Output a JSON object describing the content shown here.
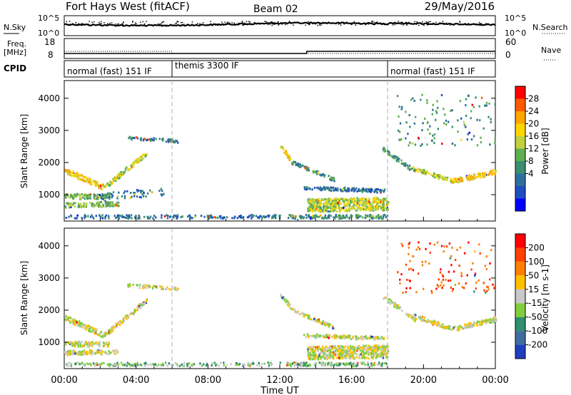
{
  "header": {
    "title": "Fort Hays West (fitACF)",
    "beam": "Beam 02",
    "date": "29/May/2016"
  },
  "noise_panel": {
    "left_label": "N.Sky",
    "right_label": "N.Search",
    "left_ticks": [
      "10^5",
      "10^0"
    ],
    "right_ticks": [
      "10^5",
      "10^0"
    ]
  },
  "freq_panel": {
    "left_label_line1": "Freq.",
    "left_label_line2": "[MHz]",
    "left_ticks": [
      "18",
      "8"
    ],
    "right_ticks": [
      "60",
      "0"
    ],
    "right_label": "Nave"
  },
  "cpid": {
    "label": "CPID",
    "segments": [
      {
        "name": "normal (fast) 151 IF",
        "start_hour": 0,
        "end_hour": 6
      },
      {
        "name": "themis 3300 IF",
        "start_hour": 6,
        "end_hour": 18
      },
      {
        "name": "normal (fast) 151 IF",
        "start_hour": 18,
        "end_hour": 24
      }
    ]
  },
  "chart_data": [
    {
      "type": "heatmap",
      "title": "",
      "ylabel": "Slant Range [km]",
      "xlabel": "Time UT",
      "xlim": [
        0,
        24
      ],
      "ylim": [
        180,
        4550
      ],
      "yticks": [
        "1000",
        "2000",
        "3000",
        "4000"
      ],
      "xticks": [
        "00:00",
        "04:00",
        "08:00",
        "12:00",
        "16:00",
        "20:00",
        "00:00"
      ],
      "colorbar": {
        "label": "Power [dB]",
        "tick_labels": [
          "4",
          "8",
          "12",
          "16",
          "20",
          "24",
          "28"
        ],
        "colors": [
          "#0000ff",
          "#1f4fbf",
          "#2f6f9f",
          "#3b8f6f",
          "#5faf4f",
          "#bfd13f",
          "#ffd700",
          "#ffa500",
          "#ff5a00",
          "#ff0000"
        ]
      },
      "scatter_bands": [
        {
          "start_hour": 0.0,
          "end_hour": 2.2,
          "range_start": 1750,
          "range_end": 1200,
          "width": 170,
          "density": 0.9,
          "level": 6
        },
        {
          "start_hour": 2.2,
          "end_hour": 4.6,
          "range_start": 1200,
          "range_end": 2300,
          "width": 150,
          "density": 0.85,
          "level": 5
        },
        {
          "start_hour": 0.0,
          "end_hour": 2.5,
          "range_start": 930,
          "range_end": 930,
          "width": 160,
          "density": 0.8,
          "level": 4
        },
        {
          "start_hour": 0.0,
          "end_hour": 3.0,
          "range_start": 650,
          "range_end": 700,
          "width": 150,
          "density": 0.75,
          "level": 4
        },
        {
          "start_hour": 3.5,
          "end_hour": 6.3,
          "range_start": 2750,
          "range_end": 2650,
          "width": 100,
          "density": 0.4,
          "level": 2
        },
        {
          "start_hour": 2.0,
          "end_hour": 5.5,
          "range_start": 900,
          "range_end": 1100,
          "width": 250,
          "density": 0.2,
          "level": 2
        },
        {
          "start_hour": 0.0,
          "end_hour": 12.0,
          "range_start": 300,
          "range_end": 300,
          "width": 110,
          "density": 0.3,
          "level": 2
        },
        {
          "start_hour": 12.0,
          "end_hour": 12.6,
          "range_start": 2500,
          "range_end": 2050,
          "width": 140,
          "density": 0.85,
          "level": 6
        },
        {
          "start_hour": 12.6,
          "end_hour": 15.0,
          "range_start": 2000,
          "range_end": 1450,
          "width": 110,
          "density": 0.6,
          "level": 3
        },
        {
          "start_hour": 13.3,
          "end_hour": 17.8,
          "range_start": 1200,
          "range_end": 1100,
          "width": 110,
          "density": 0.65,
          "level": 2
        },
        {
          "start_hour": 13.5,
          "end_hour": 18.0,
          "range_start": 650,
          "range_end": 700,
          "width": 400,
          "density": 0.9,
          "level": 5
        },
        {
          "start_hour": 12.3,
          "end_hour": 18.0,
          "range_start": 300,
          "range_end": 300,
          "width": 120,
          "density": 0.5,
          "level": 3
        },
        {
          "start_hour": 17.7,
          "end_hour": 19.5,
          "range_start": 2400,
          "range_end": 1700,
          "width": 140,
          "density": 0.6,
          "level": 3
        },
        {
          "start_hour": 19.4,
          "end_hour": 21.6,
          "range_start": 1800,
          "range_end": 1400,
          "width": 140,
          "density": 0.7,
          "level": 5
        },
        {
          "start_hour": 21.6,
          "end_hour": 24.0,
          "range_start": 1400,
          "range_end": 1700,
          "width": 150,
          "density": 0.85,
          "level": 6
        },
        {
          "start_hour": 18.5,
          "end_hour": 24.0,
          "range_start": 3300,
          "range_end": 3300,
          "width": 1600,
          "density": 0.04,
          "level": 3
        }
      ]
    },
    {
      "type": "heatmap",
      "title": "",
      "ylabel": "Slant Range [km]",
      "xlabel": "Time UT",
      "xlim": [
        0,
        24
      ],
      "ylim": [
        180,
        4550
      ],
      "yticks": [
        "1000",
        "2000",
        "3000",
        "4000"
      ],
      "xticks": [
        "00:00",
        "04:00",
        "08:00",
        "12:00",
        "16:00",
        "20:00",
        "00:00"
      ],
      "colorbar": {
        "label": "Velocity [m s-1]",
        "tick_labels": [
          "200",
          "100",
          "50",
          "15",
          "-15",
          "-50",
          "-100",
          "-200"
        ],
        "colors": [
          "#1f3fbf",
          "#3f6f9f",
          "#2f8f6f",
          "#7fcf3f",
          "#c8c8c8",
          "#ffc000",
          "#ff8000",
          "#ff4000",
          "#ff0000"
        ]
      },
      "scatter_bands": [
        {
          "start_hour": 0.0,
          "end_hour": 2.2,
          "range_start": 1750,
          "range_end": 1200,
          "width": 170,
          "density": 0.9,
          "level": 4
        },
        {
          "start_hour": 2.2,
          "end_hour": 4.6,
          "range_start": 1200,
          "range_end": 2300,
          "width": 150,
          "density": 0.85,
          "level": 4
        },
        {
          "start_hour": 0.0,
          "end_hour": 2.5,
          "range_start": 930,
          "range_end": 930,
          "width": 160,
          "density": 0.8,
          "level": 4
        },
        {
          "start_hour": 0.0,
          "end_hour": 3.0,
          "range_start": 650,
          "range_end": 700,
          "width": 150,
          "density": 0.75,
          "level": 4
        },
        {
          "start_hour": 3.5,
          "end_hour": 6.3,
          "range_start": 2750,
          "range_end": 2650,
          "width": 100,
          "density": 0.4,
          "level": 4
        },
        {
          "start_hour": 0.0,
          "end_hour": 12.0,
          "range_start": 300,
          "range_end": 300,
          "width": 110,
          "density": 0.3,
          "level": 3
        },
        {
          "start_hour": 12.0,
          "end_hour": 12.6,
          "range_start": 2500,
          "range_end": 2050,
          "width": 140,
          "density": 0.85,
          "level": 4
        },
        {
          "start_hour": 12.6,
          "end_hour": 15.0,
          "range_start": 2000,
          "range_end": 1450,
          "width": 110,
          "density": 0.6,
          "level": 4
        },
        {
          "start_hour": 13.3,
          "end_hour": 17.8,
          "range_start": 1200,
          "range_end": 1100,
          "width": 110,
          "density": 0.65,
          "level": 4
        },
        {
          "start_hour": 13.5,
          "end_hour": 18.0,
          "range_start": 650,
          "range_end": 700,
          "width": 400,
          "density": 0.9,
          "level": 4
        },
        {
          "start_hour": 12.3,
          "end_hour": 18.0,
          "range_start": 300,
          "range_end": 300,
          "width": 120,
          "density": 0.5,
          "level": 3
        },
        {
          "start_hour": 17.7,
          "end_hour": 19.5,
          "range_start": 2400,
          "range_end": 1700,
          "width": 140,
          "density": 0.6,
          "level": 4
        },
        {
          "start_hour": 19.4,
          "end_hour": 21.6,
          "range_start": 1800,
          "range_end": 1400,
          "width": 140,
          "density": 0.7,
          "level": 4
        },
        {
          "start_hour": 21.6,
          "end_hour": 24.0,
          "range_start": 1400,
          "range_end": 1700,
          "width": 150,
          "density": 0.85,
          "level": 4
        },
        {
          "start_hour": 18.5,
          "end_hour": 24.0,
          "range_start": 3300,
          "range_end": 3300,
          "width": 1600,
          "density": 0.04,
          "level": 7
        }
      ]
    }
  ]
}
